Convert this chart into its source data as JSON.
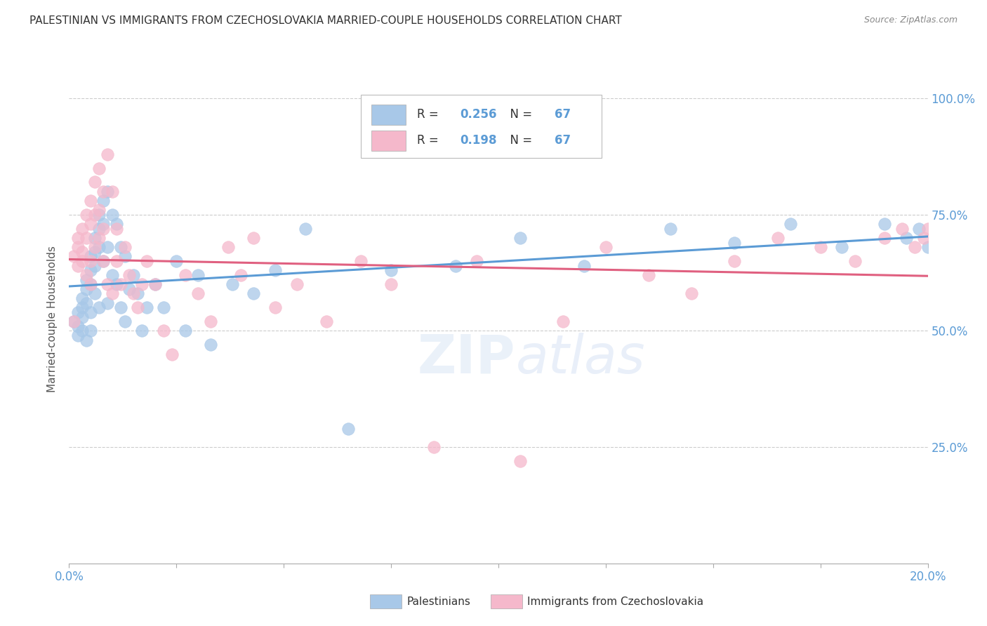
{
  "title": "PALESTINIAN VS IMMIGRANTS FROM CZECHOSLOVAKIA MARRIED-COUPLE HOUSEHOLDS CORRELATION CHART",
  "source": "Source: ZipAtlas.com",
  "ylabel": "Married-couple Households",
  "watermark": "ZIPatlas",
  "legend": {
    "blue_r": "0.256",
    "blue_n": "67",
    "pink_r": "0.198",
    "pink_n": "67"
  },
  "blue_color": "#a8c8e8",
  "pink_color": "#f5b8cb",
  "blue_line_color": "#5b9bd5",
  "pink_line_color": "#e06080",
  "xlim": [
    0.0,
    0.2
  ],
  "ylim": [
    0.0,
    1.05
  ],
  "blue_scatter_x": [
    0.001,
    0.002,
    0.002,
    0.002,
    0.003,
    0.003,
    0.003,
    0.003,
    0.004,
    0.004,
    0.004,
    0.004,
    0.005,
    0.005,
    0.005,
    0.005,
    0.005,
    0.006,
    0.006,
    0.006,
    0.006,
    0.007,
    0.007,
    0.007,
    0.007,
    0.008,
    0.008,
    0.008,
    0.009,
    0.009,
    0.009,
    0.01,
    0.01,
    0.011,
    0.011,
    0.012,
    0.012,
    0.013,
    0.013,
    0.014,
    0.015,
    0.016,
    0.017,
    0.018,
    0.02,
    0.022,
    0.025,
    0.027,
    0.03,
    0.033,
    0.038,
    0.043,
    0.048,
    0.055,
    0.065,
    0.075,
    0.09,
    0.105,
    0.12,
    0.14,
    0.155,
    0.168,
    0.18,
    0.19,
    0.195,
    0.198,
    0.2
  ],
  "blue_scatter_y": [
    0.52,
    0.54,
    0.49,
    0.51,
    0.55,
    0.57,
    0.53,
    0.5,
    0.59,
    0.61,
    0.56,
    0.48,
    0.63,
    0.66,
    0.6,
    0.54,
    0.5,
    0.7,
    0.67,
    0.64,
    0.58,
    0.75,
    0.72,
    0.68,
    0.55,
    0.78,
    0.73,
    0.65,
    0.8,
    0.68,
    0.56,
    0.75,
    0.62,
    0.73,
    0.6,
    0.68,
    0.55,
    0.66,
    0.52,
    0.59,
    0.62,
    0.58,
    0.5,
    0.55,
    0.6,
    0.55,
    0.65,
    0.5,
    0.62,
    0.47,
    0.6,
    0.58,
    0.63,
    0.72,
    0.29,
    0.63,
    0.64,
    0.7,
    0.64,
    0.72,
    0.69,
    0.73,
    0.68,
    0.73,
    0.7,
    0.72,
    0.68
  ],
  "pink_scatter_x": [
    0.001,
    0.001,
    0.002,
    0.002,
    0.002,
    0.003,
    0.003,
    0.003,
    0.004,
    0.004,
    0.004,
    0.005,
    0.005,
    0.005,
    0.005,
    0.006,
    0.006,
    0.006,
    0.007,
    0.007,
    0.007,
    0.008,
    0.008,
    0.008,
    0.009,
    0.009,
    0.01,
    0.01,
    0.011,
    0.011,
    0.012,
    0.013,
    0.014,
    0.015,
    0.016,
    0.017,
    0.018,
    0.02,
    0.022,
    0.024,
    0.027,
    0.03,
    0.033,
    0.037,
    0.04,
    0.043,
    0.048,
    0.053,
    0.06,
    0.068,
    0.075,
    0.085,
    0.095,
    0.105,
    0.115,
    0.125,
    0.135,
    0.145,
    0.155,
    0.165,
    0.175,
    0.183,
    0.19,
    0.194,
    0.197,
    0.199,
    0.2
  ],
  "pink_scatter_y": [
    0.52,
    0.66,
    0.64,
    0.68,
    0.7,
    0.72,
    0.67,
    0.65,
    0.75,
    0.7,
    0.62,
    0.78,
    0.73,
    0.65,
    0.6,
    0.82,
    0.68,
    0.75,
    0.85,
    0.7,
    0.76,
    0.8,
    0.72,
    0.65,
    0.88,
    0.6,
    0.8,
    0.58,
    0.65,
    0.72,
    0.6,
    0.68,
    0.62,
    0.58,
    0.55,
    0.6,
    0.65,
    0.6,
    0.5,
    0.45,
    0.62,
    0.58,
    0.52,
    0.68,
    0.62,
    0.7,
    0.55,
    0.6,
    0.52,
    0.65,
    0.6,
    0.25,
    0.65,
    0.22,
    0.52,
    0.68,
    0.62,
    0.58,
    0.65,
    0.7,
    0.68,
    0.65,
    0.7,
    0.72,
    0.68,
    0.7,
    0.72
  ]
}
